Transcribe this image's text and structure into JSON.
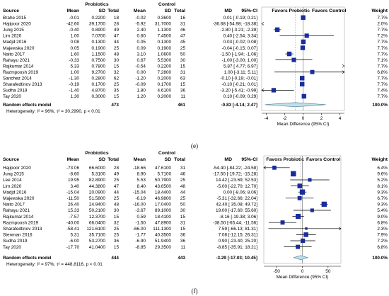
{
  "chart_data": [
    {
      "type": "forest",
      "panel_label": "(e)",
      "group_headers": [
        "Probiotics",
        "Control"
      ],
      "columns": [
        "Source",
        "Mean",
        "SD",
        "Total",
        "Mean",
        "SD",
        "Total",
        "MD",
        "95%-CI",
        "Weight"
      ],
      "favors": [
        "Favors Probiotic",
        "Favors Control"
      ],
      "xlabel": "Mean Difference (95% CI)",
      "xlim": [
        -4.5,
        4.5
      ],
      "xticks": [
        -4,
        -2,
        0,
        2,
        4
      ],
      "rows": [
        {
          "source": "Brahe 2015",
          "p_mean": "-0.01",
          "p_sd": "0.2200",
          "p_n": "18",
          "c_mean": "-0.02",
          "c_sd": "0.3600",
          "c_n": "16",
          "md": 0.01,
          "ci_text": "0.01 [-0.19; 0.21]",
          "lo": -0.19,
          "hi": 0.21,
          "weight": "7.7%",
          "w": 7.7
        },
        {
          "source": "Hajipoor 2020",
          "p_mean": "-42.60",
          "p_sd": "39.1700",
          "p_n": "28",
          "c_mean": "-5.92",
          "c_sd": "31.7000",
          "c_n": "31",
          "md": -36.68,
          "ci_text": "-36.68 [-54.98; -18.38]",
          "lo": -54.98,
          "hi": -18.38,
          "weight": "2.0%",
          "w": 2.0
        },
        {
          "source": "Jung 2015",
          "p_mean": "-0.40",
          "p_sd": "0.8900",
          "p_n": "49",
          "c_mean": "2.40",
          "c_sd": "1.1300",
          "c_n": "46",
          "md": -2.8,
          "ci_text": "-2.80 [-3.21; -2.39]",
          "lo": -3.21,
          "hi": -2.39,
          "weight": "7.7%",
          "w": 7.7
        },
        {
          "source": "Lim 2020",
          "p_mean": "1.00",
          "p_sd": "7.0700",
          "p_n": "47",
          "c_mean": "0.60",
          "c_sd": "7.4500",
          "c_n": "47",
          "md": 0.4,
          "ci_text": "0.40 [-2.54; 3.34]",
          "lo": -2.54,
          "hi": 3.34,
          "weight": "7.2%",
          "w": 7.2
        },
        {
          "source": "Madjd 2016",
          "p_mean": "0.08",
          "p_sd": "0.1300",
          "p_n": "44",
          "c_mean": "0.05",
          "c_sd": "0.1300",
          "c_n": "45",
          "md": 0.03,
          "ci_text": "0.03 [-0.02; 0.08]",
          "lo": -0.02,
          "hi": 0.08,
          "weight": "7.7%",
          "w": 7.7
        },
        {
          "source": "Majewska 2020",
          "p_mean": "0.05",
          "p_sd": "0.1900",
          "p_n": "25",
          "c_mean": "0.09",
          "c_sd": "0.1900",
          "c_n": "25",
          "md": -0.04,
          "ci_text": "-0.04 [-0.15; 0.07]",
          "lo": -0.15,
          "hi": 0.07,
          "weight": "7.7%",
          "w": 7.7
        },
        {
          "source": "Naito 2017",
          "p_mean": "1.60",
          "p_sd": "1.1500",
          "p_n": "48",
          "c_mean": "3.10",
          "c_sd": "1.0600",
          "c_n": "50",
          "md": -1.5,
          "ci_text": "-1.50 [-1.94; -1.06]",
          "lo": -1.94,
          "hi": -1.06,
          "weight": "7.7%",
          "w": 7.7
        },
        {
          "source": "Rahayu 2021",
          "p_mean": "-0.33",
          "p_sd": "0.7500",
          "p_n": "30",
          "c_mean": "0.67",
          "c_sd": "5.5300",
          "c_n": "30",
          "md": -1.0,
          "ci_text": "-1.00 [-3.00; 1.00]",
          "lo": -3.0,
          "hi": 1.0,
          "weight": "7.1%",
          "w": 7.1
        },
        {
          "source": "Rajkumar 2014",
          "p_mean": "5.33",
          "p_sd": "0.7800",
          "p_n": "15",
          "c_mean": "-0.54",
          "c_sd": "0.2200",
          "c_n": "15",
          "md": 5.87,
          "ci_text": "5.87 [ 4.77; 6.97]",
          "lo": 4.77,
          "hi": 6.97,
          "weight": "7.7%",
          "w": 7.7
        },
        {
          "source": "Razmpoosh 2019",
          "p_mean": "1.00",
          "p_sd": "9.2700",
          "p_n": "32",
          "c_mean": "0.00",
          "c_sd": "7.2800",
          "c_n": "31",
          "md": 1.0,
          "ci_text": "1.00 [-3.11; 5.11]",
          "lo": -3.11,
          "hi": 5.11,
          "weight": "6.8%",
          "w": 6.8
        },
        {
          "source": "Sanchez 2014",
          "p_mean": "-1.30",
          "p_sd": "0.2800",
          "p_n": "62",
          "c_mean": "-1.20",
          "c_sd": "0.2000",
          "c_n": "63",
          "md": -0.1,
          "ci_text": "-0.10 [-0.19; -0.01]",
          "lo": -0.19,
          "hi": -0.01,
          "weight": "7.7%",
          "w": 7.7
        },
        {
          "source": "Sharafedtinov 2013",
          "p_mean": "-0.19",
          "p_sd": "0.1700",
          "p_n": "25",
          "c_mean": "-0.09",
          "c_sd": "0.1700",
          "c_n": "15",
          "md": -0.1,
          "ci_text": "-0.10 [-0.21; 0.01]",
          "lo": -0.21,
          "hi": 0.01,
          "weight": "7.7%",
          "w": 7.7
        },
        {
          "source": "Sudha 2019",
          "p_mean": "-1.40",
          "p_sd": "4.8700",
          "p_n": "35",
          "c_mean": "1.80",
          "c_sd": "4.6100",
          "c_n": "36",
          "md": -3.2,
          "ci_text": "-3.20 [-5.41; -0.99]",
          "lo": -5.41,
          "hi": -0.99,
          "weight": "7.4%",
          "w": 7.4
        },
        {
          "source": "Tay 2020",
          "p_mean": "1.30",
          "p_sd": "0.3000",
          "p_n": "15",
          "c_mean": "1.20",
          "c_sd": "0.2000",
          "c_n": "11",
          "md": 0.1,
          "ci_text": "0.10 [-0.09; 0.29]",
          "lo": -0.09,
          "hi": 0.29,
          "weight": "7.7%",
          "w": 7.7
        }
      ],
      "summary": {
        "label": "Random effects model",
        "p_total": "473",
        "c_total": "461",
        "md": -0.83,
        "ci_text": "-0.83 [-4.14; 2.47]",
        "lo": -4.14,
        "hi": 2.47,
        "weight": "100.0%"
      },
      "heterogeneity": "Heterogeneity: I² = 96%, τ² = 30.2990, p < 0.01"
    },
    {
      "type": "forest",
      "panel_label": "(f)",
      "group_headers": [
        "Probiotics",
        "Control"
      ],
      "columns": [
        "Source",
        "Mean",
        "SD",
        "Total",
        "Mean",
        "SD",
        "Total",
        "MD",
        "95%-CI",
        "Weight"
      ],
      "favors": [
        "Favors Probiotic",
        "Favors Control"
      ],
      "xlabel": "Mean Difference (95% CI)",
      "xlim": [
        -75,
        75
      ],
      "xticks": [
        -50,
        0,
        50
      ],
      "rows": [
        {
          "source": "Hajipoor 2020",
          "p_mean": "-73.06",
          "p_sd": "66.6000",
          "p_n": "28",
          "c_mean": "-18.66",
          "c_sd": "47.6100",
          "c_n": "31",
          "md": -54.4,
          "ci_text": "-54.40 [-84.22; -24.58]",
          "lo": -84.22,
          "hi": -24.58,
          "weight": "6.4%",
          "w": 6.4
        },
        {
          "source": "Jung 2015",
          "p_mean": "-8.60",
          "p_sd": "5.3100",
          "p_n": "49",
          "c_mean": "8.90",
          "c_sd": "5.7100",
          "c_n": "46",
          "md": -17.5,
          "ci_text": "-17.50 [-19.72; -15.28]",
          "lo": -19.72,
          "hi": -15.28,
          "weight": "9.6%",
          "w": 9.6
        },
        {
          "source": "Lee 2014",
          "p_mean": "19.95",
          "p_sd": "82.8900",
          "p_n": "25",
          "c_mean": "5.53",
          "c_sd": "50.7900",
          "c_n": "25",
          "md": 14.42,
          "ci_text": "14.42 [-23.69; 52.53]",
          "lo": -23.69,
          "hi": 52.53,
          "weight": "5.2%",
          "w": 5.2
        },
        {
          "source": "Lim 2020",
          "p_mean": "3.40",
          "p_sd": "44.3800",
          "p_n": "47",
          "c_mean": "8.40",
          "c_sd": "43.6500",
          "c_n": "48",
          "md": -5.0,
          "ci_text": "-5.00 [-22.70; 12.70]",
          "lo": -22.7,
          "hi": 12.7,
          "weight": "8.1%",
          "w": 8.1
        },
        {
          "source": "Madjd 2016",
          "p_mean": "-15.04",
          "p_sd": "20.0900",
          "p_n": "44",
          "c_mean": "-15.04",
          "c_sd": "18.4400",
          "c_n": "44",
          "md": 0.0,
          "ci_text": "0.00 [-8.06; 8.06]",
          "lo": -8.06,
          "hi": 8.06,
          "weight": "9.3%",
          "w": 9.3
        },
        {
          "source": "Majewska 2020",
          "p_mean": "-11.50",
          "p_sd": "51.5800",
          "p_n": "25",
          "c_mean": "-6.19",
          "c_sd": "46.9800",
          "c_n": "25",
          "md": -5.31,
          "ci_text": "-5.31 [-32.66; 22.04]",
          "lo": -32.66,
          "hi": 22.04,
          "weight": "6.7%",
          "w": 6.7
        },
        {
          "source": "Naito 2017",
          "p_mean": "26.40",
          "p_sd": "24.9400",
          "p_n": "48",
          "c_mean": "-16.00",
          "c_sd": "17.0400",
          "c_n": "50",
          "md": 42.4,
          "ci_text": "42.40 [ 35.08; 49.72]",
          "lo": 35.08,
          "hi": 49.72,
          "weight": "9.3%",
          "w": 9.3
        },
        {
          "source": "Rahayu 2021",
          "p_mean": "15.33",
          "p_sd": "50.2100",
          "p_n": "30",
          "c_mean": "-3.67",
          "c_sd": "89.1000",
          "c_n": "30",
          "md": 19.0,
          "ci_text": "19.00 [-17.60; 55.60]",
          "lo": -17.6,
          "hi": 55.6,
          "weight": "5.4%",
          "w": 5.4
        },
        {
          "source": "Rajkumar 2014",
          "p_mean": "-7.57",
          "p_sd": "12.3700",
          "p_n": "15",
          "c_mean": "0.59",
          "c_sd": "18.4100",
          "c_n": "15",
          "md": -8.16,
          "ci_text": "-8.16 [-19.38; 3.06]",
          "lo": -19.38,
          "hi": 3.06,
          "weight": "9.0%",
          "w": 9.0
        },
        {
          "source": "Razmpoosh 2019",
          "p_mean": "-40.00",
          "p_sd": "66.0400",
          "p_n": "32",
          "c_mean": "-1.50",
          "c_sd": "47.8900",
          "c_n": "31",
          "md": -38.5,
          "ci_text": "-38.50 [-65.44; -11.56]",
          "lo": -65.44,
          "hi": -11.56,
          "weight": "6.8%",
          "w": 6.8
        },
        {
          "source": "Sharafedtinov 2013",
          "p_mean": "-58.41",
          "p_sd": "121.6100",
          "p_n": "25",
          "c_mean": "-66.00",
          "c_sd": "111.1300",
          "c_n": "15",
          "md": 7.59,
          "ci_text": "7.59 [-66.13; 81.31]",
          "lo": -66.13,
          "hi": 81.31,
          "weight": "2.3%",
          "w": 2.3
        },
        {
          "source": "Stenman 2016",
          "p_mean": "5.31",
          "p_sd": "35.7100",
          "p_n": "25",
          "c_mean": "-1.77",
          "c_sd": "40.3500",
          "c_n": "36",
          "md": 7.08,
          "ci_text": "7.08 [-12.15; 26.31]",
          "lo": -12.15,
          "hi": 26.31,
          "weight": "7.9%",
          "w": 7.9
        },
        {
          "source": "Sudha 2019",
          "p_mean": "-6.00",
          "p_sd": "53.2700",
          "p_n": "36",
          "c_mean": "-6.90",
          "c_sd": "51.9400",
          "c_n": "36",
          "md": 0.9,
          "ci_text": "0.90 [-23.40; 25.20]",
          "lo": -23.4,
          "hi": 25.2,
          "weight": "7.2%",
          "w": 7.2
        },
        {
          "source": "Tay 2020",
          "p_mean": "-17.70",
          "p_sd": "41.0400",
          "p_n": "15",
          "c_mean": "-8.85",
          "c_sd": "29.3500",
          "c_n": "11",
          "md": -8.85,
          "ci_text": "-8.85 [-35.91; 18.21]",
          "lo": -35.91,
          "hi": 18.21,
          "weight": "6.8%",
          "w": 6.8
        }
      ],
      "summary": {
        "label": "Random effects model",
        "p_total": "444",
        "c_total": "443",
        "md": -3.29,
        "ci_text": "-3.29 [-17.03; 10.45]",
        "lo": -17.03,
        "hi": 10.45,
        "weight": "100.0%"
      },
      "heterogeneity": "Heterogeneity: I² = 97%, τ² = 448.8116, p < 0.01"
    }
  ]
}
